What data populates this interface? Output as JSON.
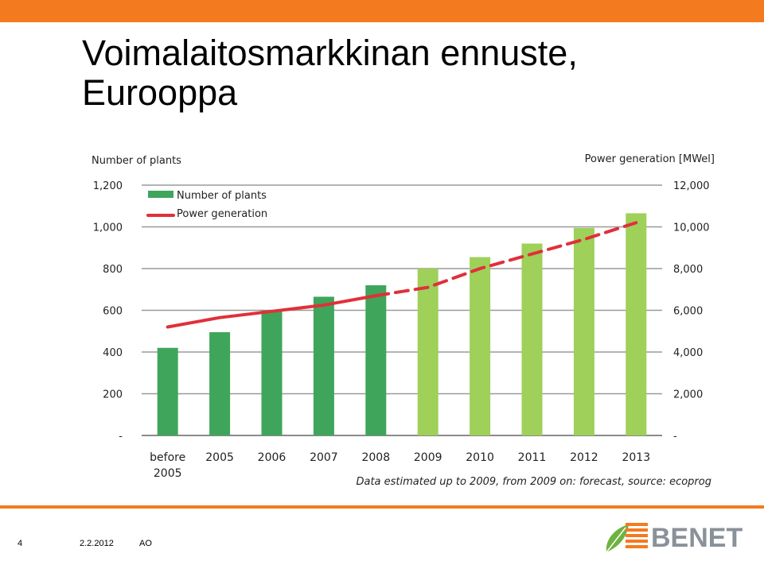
{
  "slide": {
    "title_line1": "Voimalaitosmarkkinan ennuste,",
    "title_line2": "Eurooppa",
    "accent_color": "#F47A20",
    "rule_color": "#F47A20"
  },
  "footer": {
    "page_number": "4",
    "date": "2.2.2012",
    "author": "AO",
    "logo_text": "BENET"
  },
  "chart_data": {
    "type": "bar",
    "left_axis_label": "Number of plants",
    "right_axis_label": "Power generation [MWel]",
    "categories": [
      "before\n2005",
      "2005",
      "2006",
      "2007",
      "2008",
      "2009",
      "2010",
      "2011",
      "2012",
      "2013"
    ],
    "left_ylim": [
      0,
      1200
    ],
    "right_ylim": [
      0,
      12000
    ],
    "left_ticks": [
      "-",
      "200",
      "400",
      "600",
      "800",
      "1,000",
      "1,200"
    ],
    "right_ticks": [
      "-",
      "2,000",
      "4,000",
      "6,000",
      "8,000",
      "10,000",
      "12,000"
    ],
    "grid": true,
    "legend_position": "top-left",
    "series": [
      {
        "name": "Number of plants",
        "axis": "left",
        "values": [
          420,
          495,
          600,
          665,
          720,
          800,
          855,
          920,
          995,
          1065
        ],
        "colors_actual": "#3FA55B",
        "colors_forecast": "#9ED05A"
      },
      {
        "name": "Power generation",
        "axis": "right",
        "values": [
          5200,
          5650,
          5950,
          6250,
          6700,
          7100,
          8000,
          8700,
          9400,
          10200
        ],
        "color": "#E0303A",
        "forecast_from_index": 5
      }
    ],
    "note": "Data estimated   up to 2009, from 2009 on: forecast,  source:  ecoprog"
  }
}
